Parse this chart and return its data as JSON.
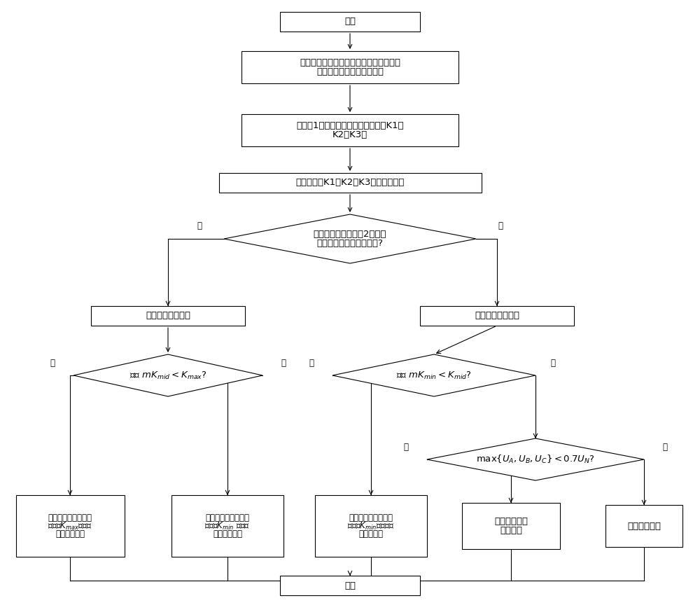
{
  "bg_color": "#ffffff",
  "box_color": "#ffffff",
  "box_edge": "#000000",
  "arrow_color": "#000000",
  "text_color": "#000000",
  "font_size": 9.5,
  "label_font_size": 8.5,
  "start_label": "开始",
  "end_label": "结束",
  "step1_label_line1": "通过保护装置计算各相电压突变量、各线",
  "step1_label_line2": "电压突变量和零序电压大小",
  "step2_label_line1": "由式（1）计算故障相别选择系数（K1、",
  "step2_label_line2": "K2和K3）",
  "step3_label": "对计算出的K1、K2和K3大小进行排序",
  "d1_label_line1": "通过零序电压判据（2），确",
  "d1_label_line2": "定电网是否发生接地故障?",
  "box_left_label": "进入接地故障选相",
  "box_right_label": "进入相间故障选相",
  "d2_label": "判断 $mK_{mid} < K_{max}$?",
  "d3_label": "判断 $mK_{min} < K_{mid}$?",
  "d4_label": "$\\mathrm{max}\\{U_A,U_B,U_C\\}<0.7U_N$?",
  "res1_l1": "电网发生单相接地故",
  "res1_l2": "障，且$K_{max}$对应的",
  "res1_l3": "相别为故障相",
  "res2_l1": "电网发生两相接地故",
  "res2_l2": "障，且$K_{min}$ 对应的",
  "res2_l3": "相别为健全相",
  "res3_l1": "电网发生两相相间故",
  "res3_l2": "障，且$K_{min}$对应的相",
  "res3_l3": "别为健全相",
  "res4_l1": "电网发生三相",
  "res4_l2": "对称故障",
  "res5_l1": "故障选相失败",
  "yes": "是",
  "no": "否"
}
